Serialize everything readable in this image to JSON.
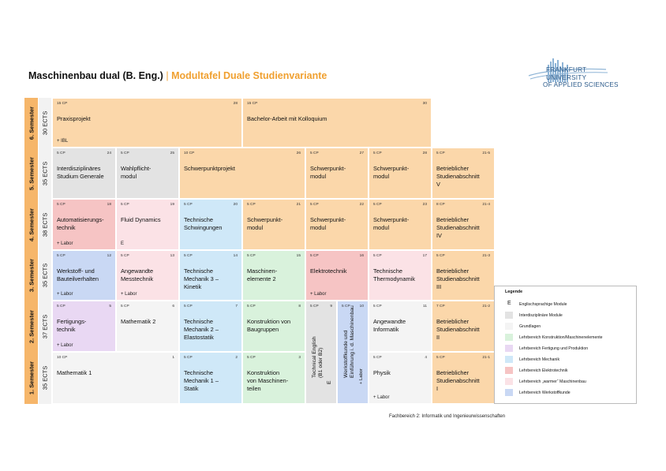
{
  "header": {
    "title": "Maschinenbau dual (B. Eng.)",
    "separator": "|",
    "subtitle": "Modultafel Duale Studienvariante"
  },
  "logo": {
    "line1": "FRANKFURT",
    "line2": "UNIVERSITY",
    "line3": "OF APPLIED SCIENCES"
  },
  "semesters": [
    {
      "label": "6. Semester",
      "ects": "30 ECTS"
    },
    {
      "label": "5. Semester",
      "ects": "35 ECTS"
    },
    {
      "label": "4. Semester",
      "ects": "38 ECTS"
    },
    {
      "label": "3. Semester",
      "ects": "35 ECTS"
    },
    {
      "label": "2. Semester",
      "ects": "37 ECTS"
    },
    {
      "label": "1. Semester",
      "ects": "35 ECTS"
    }
  ],
  "modules": {
    "s6": [
      {
        "cp": "15 CP",
        "num": "28",
        "name": "Praxisprojekt",
        "extra": "+ IBL"
      },
      {
        "cp": "15 CP",
        "num": "30",
        "name": "Bachelor-Arbeit mit Kolloquium",
        "extra": ""
      }
    ],
    "s5": [
      {
        "cp": "5 CP",
        "num": "24",
        "name": "Interdisziplinäres\nStudium Generale",
        "extra": ""
      },
      {
        "cp": "5 CP",
        "num": "25",
        "name": "Wahlpflicht-\nmodul",
        "extra": ""
      },
      {
        "cp": "10 CP",
        "num": "26",
        "name": "Schwerpunktprojekt",
        "extra": ""
      },
      {
        "cp": "5 CP",
        "num": "27",
        "name": "Schwerpunkt-\nmodul",
        "extra": ""
      },
      {
        "cp": "5 CP",
        "num": "28",
        "name": "Schwerpunkt-\nmodul",
        "extra": ""
      },
      {
        "cp": "5 CP",
        "num": "21-5",
        "name": "Betrieblicher\nStudienabschnitt\nV",
        "extra": ""
      }
    ],
    "s4": [
      {
        "cp": "5 CP",
        "num": "18",
        "name": "Automatisierungs-\ntechnik",
        "extra": "+ Labor"
      },
      {
        "cp": "5 CP",
        "num": "19",
        "name": "Fluid Dynamics",
        "extra": "E"
      },
      {
        "cp": "5 CP",
        "num": "20",
        "name": "Technische\nSchwingungen",
        "extra": ""
      },
      {
        "cp": "5 CP",
        "num": "21",
        "name": "Schwerpunkt-\nmodul",
        "extra": ""
      },
      {
        "cp": "5 CP",
        "num": "22",
        "name": "Schwerpunkt-\nmodul",
        "extra": ""
      },
      {
        "cp": "5 CP",
        "num": "23",
        "name": "Schwerpunkt-\nmodul",
        "extra": ""
      },
      {
        "cp": "8 CP",
        "num": "21-4",
        "name": "Betrieblicher\nStudienabschnitt\nIV",
        "extra": ""
      }
    ],
    "s3": [
      {
        "cp": "5 CP",
        "num": "12",
        "name": "Werkstoff- und\nBauteilverhalten",
        "extra": "+ Labor"
      },
      {
        "cp": "5 CP",
        "num": "13",
        "name": "Angewandte\nMesstechnik",
        "extra": "+ Labor"
      },
      {
        "cp": "5 CP",
        "num": "14",
        "name": "Technische\nMechanik 3 –\nKinetik",
        "extra": ""
      },
      {
        "cp": "5 CP",
        "num": "15",
        "name": "Maschinen-\nelemente 2",
        "extra": ""
      },
      {
        "cp": "5 CP",
        "num": "16",
        "name": "Elektrotechnik",
        "extra": "+ Labor"
      },
      {
        "cp": "5 CP",
        "num": "17",
        "name": "Technische\nThermodynamik",
        "extra": ""
      },
      {
        "cp": "5 CP",
        "num": "21-3",
        "name": "Betrieblicher\nStudienabschnitt\nIII",
        "extra": ""
      }
    ],
    "s2": [
      {
        "cp": "5 CP",
        "num": "5",
        "name": "Fertigungs-\ntechnik",
        "extra": "+ Labor"
      },
      {
        "cp": "5 CP",
        "num": "6",
        "name": "Mathematik 2",
        "extra": ""
      },
      {
        "cp": "5 CP",
        "num": "7",
        "name": "Technische\nMechanik 2 –\nElastostatik",
        "extra": ""
      },
      {
        "cp": "5 CP",
        "num": "8",
        "name": "Konstruktion von\nBaugruppen",
        "extra": ""
      },
      {
        "cp": "5 CP",
        "num": "11",
        "name": "Angewandte\nInformatik",
        "extra": ""
      },
      {
        "cp": "7 CP",
        "num": "21-2",
        "name": "Betrieblicher\nStudienabschnitt\nII",
        "extra": ""
      }
    ],
    "s1": [
      {
        "cp": "10 CP",
        "num": "1",
        "name": "Mathematik 1",
        "extra": ""
      },
      {
        "cp": "5 CP",
        "num": "2",
        "name": "Technische\nMechanik 1 –\nStatik",
        "extra": ""
      },
      {
        "cp": "5 CP",
        "num": "3",
        "name": "Konstruktion\nvon Maschinen-\nteilen",
        "extra": ""
      },
      {
        "cp": "5 CP",
        "num": "4",
        "name": "Physik",
        "extra": "+ Labor"
      },
      {
        "cp": "5 CP",
        "num": "21-1",
        "name": "Betrieblicher\nStudienabschnitt\nI",
        "extra": ""
      }
    ],
    "tall": [
      {
        "cp": "5 CP",
        "num": "9",
        "name": "Technical English\n(B1 oder B2)",
        "extra": "E"
      },
      {
        "cp": "5 CP",
        "num": "10",
        "name": "Werkstoffkunde und\nEinführung i. d. Maschinenbau",
        "extra": "+ Labor"
      }
    ]
  },
  "legend": {
    "title": "Legende",
    "items": [
      {
        "label": "Englischsprachige Module",
        "color": "#ffffff",
        "marker": "E"
      },
      {
        "label": "Interdisziplinäre Module",
        "color": "#e3e3e3"
      },
      {
        "label": "Grundlagen",
        "color": "#f4f4f4"
      },
      {
        "label": "Lehrbereich Konstruktion/Maschinenelemente",
        "color": "#d9f2dc"
      },
      {
        "label": "Lehrbereich Fertigung und Produktion",
        "color": "#e9d8f3"
      },
      {
        "label": "Lehrbereich Mechanik",
        "color": "#cfe8f8"
      },
      {
        "label": "Lehrbereich Elektrotechnik",
        "color": "#f6c4c4"
      },
      {
        "label": "Lehrbereich „warmer“ Maschinenbau",
        "color": "#fbe2e6"
      },
      {
        "label": "Lehrbereich Werkstoffkunde",
        "color": "#c9d8f4"
      }
    ]
  },
  "footer": "Fachbereich 2: Informatik und Ingenieurwissenschaften"
}
